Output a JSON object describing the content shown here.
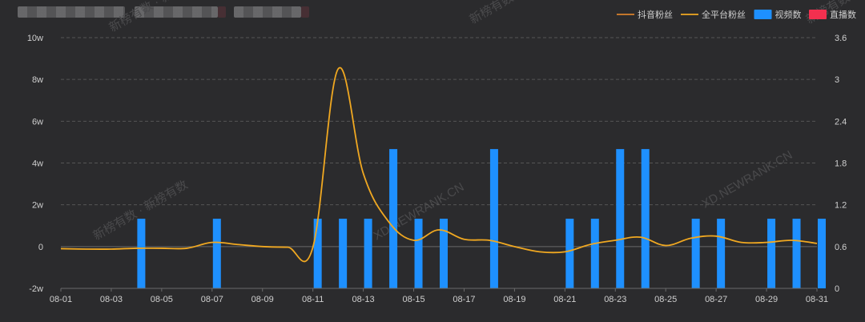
{
  "header": {
    "obscured_title": true
  },
  "watermarks": [
    "新榜有数 · 新榜有数",
    "XD.NEWRANK.CN"
  ],
  "colors": {
    "background": "#2b2b2d",
    "douyin_fans": "#d9822b",
    "all_platform_fans": "#f0a821",
    "videos": "#1e90ff",
    "live": "#f2304f",
    "axis_text": "#cfcfcf",
    "grid": "#555555"
  },
  "chart_data": {
    "type": "bar",
    "grid": true,
    "legend_position": "top-right",
    "legend": [
      {
        "name": "抖音粉丝",
        "kind": "line",
        "color": "#d9822b"
      },
      {
        "name": "全平台粉丝",
        "kind": "line",
        "color": "#f0a821"
      },
      {
        "name": "视频数",
        "kind": "bar",
        "color": "#1e90ff"
      },
      {
        "name": "直播数",
        "kind": "bar",
        "color": "#f2304f"
      }
    ],
    "x_tick_labels": [
      "08-01",
      "08-03",
      "08-05",
      "08-07",
      "08-09",
      "08-11",
      "08-13",
      "08-15",
      "08-17",
      "08-19",
      "08-21",
      "08-23",
      "08-25",
      "08-27",
      "08-29",
      "08-31"
    ],
    "y_left": {
      "min": -2,
      "max": 10,
      "ticks": [
        "-2w",
        "0",
        "2w",
        "4w",
        "6w",
        "8w",
        "10w"
      ],
      "values": [
        -2,
        0,
        2,
        4,
        6,
        8,
        10
      ]
    },
    "y_right": {
      "min": 0,
      "max": 3.6,
      "ticks": [
        "0",
        "0.6",
        "1.2",
        "1.8",
        "2.4",
        "3",
        "3.6"
      ],
      "values": [
        0,
        0.6,
        1.2,
        1.8,
        2.4,
        3,
        3.6
      ]
    },
    "x_days": [
      1,
      2,
      3,
      4,
      5,
      6,
      7,
      8,
      9,
      10,
      11,
      12,
      13,
      14,
      15,
      16,
      17,
      18,
      19,
      20,
      21,
      22,
      23,
      24,
      25,
      26,
      27,
      28,
      29,
      30,
      31
    ],
    "series": [
      {
        "name": "视频数",
        "type": "bar",
        "axis": "right",
        "values": [
          0,
          0,
          0,
          1,
          0,
          0,
          1,
          0,
          0,
          0,
          1,
          1,
          1,
          2,
          1,
          1,
          0,
          2,
          0,
          0,
          1,
          1,
          2,
          2,
          0,
          1,
          1,
          0,
          1,
          1,
          1
        ]
      },
      {
        "name": "直播数",
        "type": "bar",
        "axis": "right",
        "values": [
          0,
          0,
          0,
          0,
          0,
          0,
          0,
          0,
          0,
          0,
          0,
          0,
          0,
          0,
          0,
          0,
          0,
          0,
          0,
          0,
          0,
          0,
          0,
          0,
          0,
          0,
          0,
          0,
          0,
          0,
          0
        ]
      },
      {
        "name": "全平台粉丝",
        "type": "line",
        "axis": "left",
        "values": [
          -0.1,
          -0.12,
          -0.12,
          -0.08,
          -0.08,
          -0.08,
          0.2,
          0.1,
          0.0,
          -0.03,
          -0.03,
          8.5,
          3.5,
          1.2,
          0.3,
          0.8,
          0.35,
          0.3,
          0.0,
          -0.25,
          -0.25,
          0.1,
          0.3,
          0.45,
          0.05,
          0.4,
          0.5,
          0.2,
          0.2,
          0.3,
          0.15
        ]
      }
    ]
  }
}
